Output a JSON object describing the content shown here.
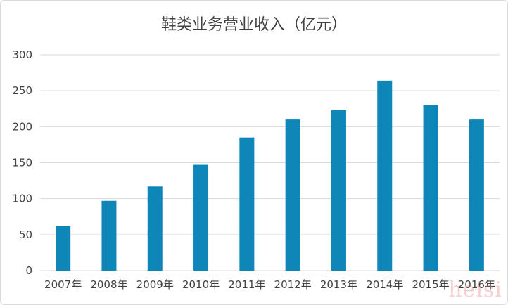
{
  "chart_data": {
    "type": "bar",
    "title": "鞋类业务营业收入（亿元）",
    "categories": [
      "2007年",
      "2008年",
      "2009年",
      "2010年",
      "2011年",
      "2012年",
      "2013年",
      "2014年",
      "2015年",
      "2016年"
    ],
    "values": [
      62,
      97,
      117,
      147,
      185,
      210,
      223,
      264,
      230,
      210
    ],
    "ylim": [
      0,
      300
    ],
    "yticks": [
      0,
      50,
      100,
      150,
      200,
      250,
      300
    ],
    "grid": true,
    "legend": "none",
    "bar_color": "#0e86b8",
    "grid_color": "#d9d9d9"
  },
  "watermark": "heisi"
}
